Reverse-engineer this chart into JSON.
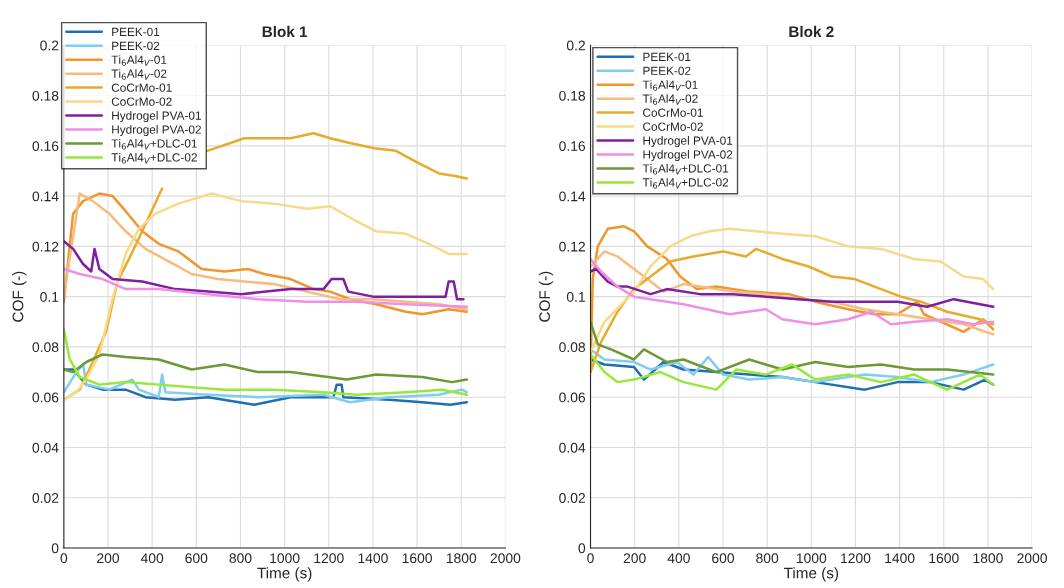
{
  "chart_data": [
    {
      "type": "line",
      "title": "Blok 1",
      "xlabel": "Time (s)",
      "ylabel": "COF (-)",
      "xlim": [
        0,
        2000
      ],
      "ylim": [
        0,
        0.2
      ],
      "xticks": [
        0,
        200,
        400,
        600,
        800,
        1000,
        1200,
        1400,
        1600,
        1800,
        2000
      ],
      "yticks": [
        0,
        0.02,
        0.04,
        0.06,
        0.08,
        0.1,
        0.12,
        0.14,
        0.16,
        0.18,
        0.2
      ],
      "grid": true,
      "legend": "top left",
      "line_style": "solid",
      "series": [
        {
          "name": "PEEK-01",
          "color": "#1f6fb2",
          "x": [
            0,
            42,
            102,
            176,
            280,
            370,
            504,
            654,
            862,
            1027,
            1221,
            1236,
            1258,
            1266,
            1475,
            1624,
            1751,
            1825
          ],
          "values": [
            0.071,
            0.071,
            0.065,
            0.063,
            0.063,
            0.06,
            0.059,
            0.06,
            0.057,
            0.06,
            0.06,
            0.065,
            0.065,
            0.06,
            0.059,
            0.058,
            0.057,
            0.058
          ]
        },
        {
          "name": "PEEK-02",
          "color": "#7fcdf0",
          "x": [
            0,
            57,
            87,
            102,
            206,
            310,
            340,
            430,
            445,
            460,
            654,
            877,
            1176,
            1296,
            1475,
            1699,
            1803,
            1825
          ],
          "values": [
            0.062,
            0.07,
            0.073,
            0.065,
            0.063,
            0.067,
            0.063,
            0.06,
            0.069,
            0.062,
            0.061,
            0.06,
            0.061,
            0.058,
            0.06,
            0.061,
            0.063,
            0.062
          ]
        },
        {
          "name": "Ti$_{6}$Al4$_{V}$-01",
          "color": "#f0962e",
          "x": [
            0,
            42,
            87,
            161,
            221,
            280,
            355,
            430,
            519,
            624,
            728,
            833,
            907,
            1027,
            1131,
            1206,
            1296,
            1415,
            1549,
            1624,
            1743,
            1825
          ],
          "values": [
            0.098,
            0.133,
            0.138,
            0.141,
            0.14,
            0.134,
            0.126,
            0.121,
            0.118,
            0.111,
            0.11,
            0.111,
            0.109,
            0.107,
            0.103,
            0.102,
            0.099,
            0.097,
            0.094,
            0.093,
            0.095,
            0.094
          ]
        },
        {
          "name": "Ti$_{6}$Al4$_{V}$-02",
          "color": "#f5bc7e",
          "x": [
            0,
            72,
            131,
            206,
            280,
            370,
            475,
            579,
            698,
            818,
            952,
            1101,
            1251,
            1400,
            1549,
            1699,
            1825
          ],
          "values": [
            0.1,
            0.141,
            0.138,
            0.133,
            0.126,
            0.119,
            0.114,
            0.109,
            0.107,
            0.106,
            0.105,
            0.102,
            0.099,
            0.099,
            0.098,
            0.097,
            0.095
          ]
        },
        {
          "name": "CoCrMo-01",
          "color": "#e8aa2a",
          "x": [
            0,
            72,
            131,
            191,
            243,
            295,
            355,
            445,
            530,
            650,
            818,
            1027,
            1131,
            1206,
            1300,
            1407,
            1504,
            1609,
            1699,
            1773,
            1825
          ],
          "values": [
            0.059,
            0.063,
            0.074,
            0.086,
            0.106,
            0.115,
            0.126,
            0.143,
            null,
            0.158,
            0.163,
            0.163,
            0.165,
            0.163,
            0.161,
            0.159,
            0.158,
            0.153,
            0.149,
            0.148,
            0.147
          ]
        },
        {
          "name": "CoCrMo-02",
          "color": "#f7d98a",
          "x": [
            0,
            57,
            100,
            161,
            220,
            280,
            340,
            415,
            519,
            669,
            803,
            952,
            1101,
            1206,
            1325,
            1415,
            1549,
            1654,
            1743,
            1825
          ],
          "values": [
            0.059,
            0.062,
            0.067,
            0.077,
            0.099,
            0.117,
            0.127,
            0.133,
            0.137,
            0.141,
            0.138,
            0.137,
            0.135,
            0.136,
            0.13,
            0.126,
            0.125,
            0.121,
            0.117,
            0.117
          ]
        },
        {
          "name": "Hydrogel PVA-01",
          "color": "#7f1fa0",
          "x": [
            0,
            42,
            87,
            124,
            139,
            161,
            221,
            355,
            504,
            654,
            803,
            1027,
            1176,
            1213,
            1266,
            1288,
            1400,
            1549,
            1729,
            1743,
            1766,
            1781,
            1810
          ],
          "values": [
            0.122,
            0.119,
            0.113,
            0.11,
            0.119,
            0.111,
            0.107,
            0.106,
            0.103,
            0.102,
            0.101,
            0.103,
            0.103,
            0.107,
            0.107,
            0.102,
            0.1,
            0.1,
            0.1,
            0.106,
            0.106,
            0.099,
            0.099
          ]
        },
        {
          "name": "Hydrogel PVA-02",
          "color": "#ee8fe8",
          "x": [
            0,
            72,
            176,
            280,
            430,
            654,
            877,
            1101,
            1325,
            1549,
            1825
          ],
          "values": [
            0.111,
            0.109,
            0.107,
            0.103,
            0.103,
            0.101,
            0.099,
            0.098,
            0.098,
            0.097,
            0.096
          ]
        },
        {
          "name": "Ti$_{6}$Al4$_{V}$+DLC-01",
          "color": "#6b9a35",
          "x": [
            0,
            42,
            102,
            176,
            280,
            430,
            579,
            728,
            877,
            1027,
            1281,
            1415,
            1624,
            1758,
            1825
          ],
          "values": [
            0.071,
            0.07,
            0.074,
            0.077,
            0.076,
            0.075,
            0.071,
            0.073,
            0.07,
            0.07,
            0.067,
            0.069,
            0.068,
            0.066,
            0.067
          ]
        },
        {
          "name": "Ti$_{6}$Al4$_{V}$+DLC-02",
          "color": "#98e83a",
          "x": [
            0,
            27,
            72,
            161,
            280,
            430,
            579,
            728,
            952,
            1176,
            1325,
            1549,
            1713,
            1825
          ],
          "values": [
            0.087,
            0.075,
            0.068,
            0.065,
            0.066,
            0.065,
            0.064,
            0.063,
            0.063,
            0.062,
            0.061,
            0.062,
            0.063,
            0.061
          ]
        }
      ]
    },
    {
      "type": "line",
      "title": "Blok 2",
      "xlabel": "Time (s)",
      "ylabel": "COF (-)",
      "xlim": [
        0,
        2000
      ],
      "ylim": [
        0,
        0.2
      ],
      "xticks": [
        0,
        200,
        400,
        600,
        800,
        1000,
        1200,
        1400,
        1600,
        1800,
        2000
      ],
      "yticks": [
        0,
        0.02,
        0.04,
        0.06,
        0.08,
        0.1,
        0.12,
        0.14,
        0.16,
        0.18,
        0.2
      ],
      "grid": true,
      "legend": "top left",
      "line_style": "solid",
      "series": [
        {
          "name": "PEEK-01",
          "color": "#1f6fb2",
          "x": [
            0,
            63,
            197,
            242,
            331,
            421,
            570,
            719,
            869,
            1018,
            1242,
            1391,
            1540,
            1690,
            1788,
            1824
          ],
          "values": [
            0.075,
            0.073,
            0.072,
            0.067,
            0.074,
            0.071,
            0.07,
            0.069,
            0.068,
            0.066,
            0.063,
            0.066,
            0.066,
            0.063,
            0.067,
            0.065
          ]
        },
        {
          "name": "PEEK-02",
          "color": "#7fcdf0",
          "x": [
            0,
            63,
            197,
            272,
            391,
            466,
            533,
            600,
            719,
            869,
            1018,
            1242,
            1391,
            1540,
            1690,
            1824
          ],
          "values": [
            0.079,
            0.075,
            0.074,
            0.071,
            0.074,
            0.069,
            0.076,
            0.069,
            0.067,
            0.068,
            0.066,
            0.069,
            0.068,
            0.066,
            0.069,
            0.073
          ]
        },
        {
          "name": "Ti$_{6}$Al4$_{V}$-01",
          "color": "#f0962e",
          "x": [
            0,
            10,
            33,
            78,
            152,
            197,
            257,
            346,
            406,
            481,
            570,
            719,
            899,
            1018,
            1167,
            1287,
            1391,
            1481,
            1510,
            1690,
            1779,
            1824
          ],
          "values": [
            0.07,
            0.107,
            0.12,
            0.127,
            0.128,
            0.126,
            0.12,
            0.115,
            0.108,
            0.103,
            0.104,
            0.102,
            0.101,
            0.098,
            0.095,
            0.093,
            0.093,
            0.098,
            0.093,
            0.086,
            0.091,
            0.087
          ]
        },
        {
          "name": "Ti$_{6}$Al4$_{V}$-02",
          "color": "#f5bc7e",
          "x": [
            0,
            63,
            122,
            197,
            272,
            331,
            421,
            496,
            645,
            794,
            943,
            1093,
            1242,
            1391,
            1540,
            1690,
            1824
          ],
          "values": [
            0.112,
            0.118,
            0.116,
            0.111,
            0.106,
            0.102,
            0.105,
            0.104,
            0.102,
            0.101,
            0.099,
            0.098,
            0.095,
            0.093,
            0.091,
            0.089,
            0.085
          ]
        },
        {
          "name": "CoCrMo-01",
          "color": "#e8aa2a",
          "x": [
            0,
            48,
            122,
            197,
            272,
            361,
            466,
            600,
            704,
            749,
            869,
            988,
            1093,
            1197,
            1316,
            1406,
            1496,
            1615,
            1764,
            1824
          ],
          "values": [
            0.07,
            0.082,
            0.094,
            0.103,
            0.108,
            0.114,
            0.116,
            0.118,
            0.116,
            0.119,
            0.115,
            0.112,
            0.108,
            0.107,
            0.103,
            0.1,
            0.098,
            0.094,
            0.091,
            0.089
          ]
        },
        {
          "name": "CoCrMo-02",
          "color": "#f7d98a",
          "x": [
            0,
            63,
            197,
            272,
            361,
            451,
            540,
            630,
            749,
            869,
            1018,
            1167,
            1316,
            1466,
            1585,
            1690,
            1779,
            1824
          ],
          "values": [
            0.078,
            0.09,
            0.102,
            0.112,
            0.12,
            0.124,
            0.126,
            0.127,
            0.126,
            0.125,
            0.124,
            0.12,
            0.119,
            0.115,
            0.114,
            0.108,
            0.107,
            0.103
          ]
        },
        {
          "name": "Hydrogel PVA-01",
          "color": "#7f1fa0",
          "x": [
            0,
            25,
            78,
            122,
            167,
            272,
            346,
            496,
            645,
            794,
            943,
            1093,
            1242,
            1391,
            1525,
            1645,
            1824
          ],
          "values": [
            0.11,
            0.111,
            0.106,
            0.104,
            0.104,
            0.101,
            0.103,
            0.101,
            0.101,
            0.1,
            0.099,
            0.098,
            0.098,
            0.098,
            0.096,
            0.099,
            0.096
          ]
        },
        {
          "name": "Hydrogel PVA-02",
          "color": "#ee8fe8",
          "x": [
            0,
            48,
            122,
            197,
            272,
            421,
            630,
            794,
            869,
            1018,
            1167,
            1272,
            1361,
            1466,
            1615,
            1734,
            1824
          ],
          "values": [
            0.115,
            0.11,
            0.104,
            0.1,
            0.099,
            0.097,
            0.093,
            0.095,
            0.091,
            0.089,
            0.091,
            0.094,
            0.089,
            0.09,
            0.091,
            0.089,
            0.09
          ]
        },
        {
          "name": "Ti$_{6}$Al4$_{V}$+DLC-01",
          "color": "#6b9a35",
          "x": [
            0,
            33,
            93,
            197,
            242,
            346,
            421,
            570,
            719,
            869,
            1018,
            1167,
            1316,
            1466,
            1615,
            1824
          ],
          "values": [
            0.09,
            0.081,
            0.079,
            0.075,
            0.079,
            0.074,
            0.075,
            0.07,
            0.075,
            0.071,
            0.074,
            0.072,
            0.073,
            0.071,
            0.071,
            0.069
          ]
        },
        {
          "name": "Ti$_{6}$Al4$_{V}$+DLC-02",
          "color": "#98e83a",
          "x": [
            0,
            63,
            122,
            197,
            316,
            421,
            570,
            660,
            794,
            913,
            1018,
            1167,
            1316,
            1466,
            1615,
            1764,
            1824
          ],
          "values": [
            0.077,
            0.07,
            0.066,
            0.067,
            0.07,
            0.066,
            0.063,
            0.071,
            0.069,
            0.073,
            0.067,
            0.069,
            0.066,
            0.069,
            0.063,
            0.069,
            0.065
          ]
        }
      ]
    }
  ]
}
